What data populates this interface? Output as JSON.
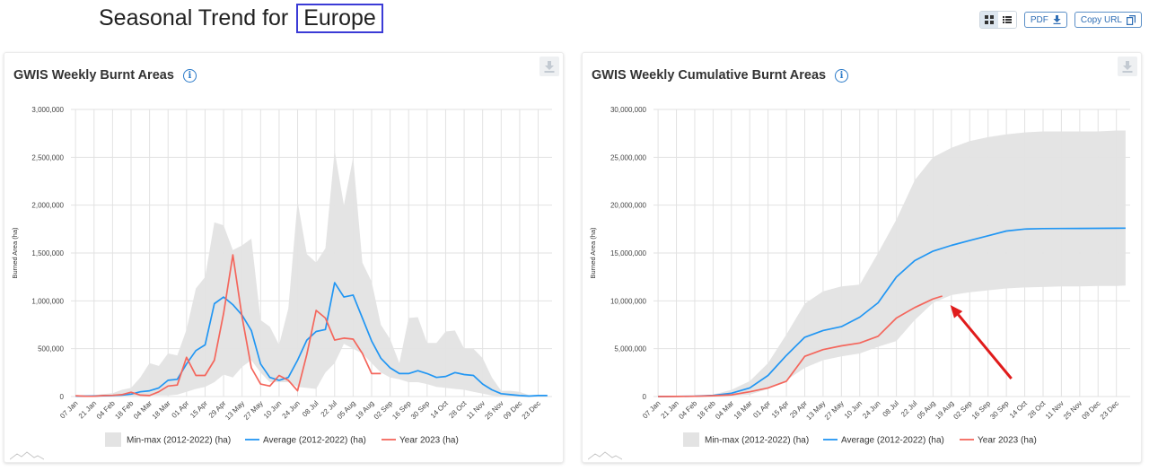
{
  "page": {
    "title_prefix": "Seasonal Trend for",
    "region": "Europe",
    "pdf_label": "PDF",
    "copy_url_label": "Copy URL",
    "icons": [
      "grid-view-icon",
      "list-view-icon",
      "download-icon",
      "copy-icon",
      "info-icon",
      "mountain-logo-icon"
    ]
  },
  "colors": {
    "minmax": "#e3e3e3",
    "average": "#2196f3",
    "year": "#f4665c",
    "grid": "#e2e2e2",
    "arrow": "#e01b1b"
  },
  "chart_data": [
    {
      "type": "area",
      "title": "GWIS Weekly Burnt Areas",
      "xlabel": "",
      "ylabel": "Burned Area (ha)",
      "ylim": [
        0,
        3000000
      ],
      "yticks": [
        0,
        500000,
        1000000,
        1500000,
        2000000,
        2500000,
        3000000
      ],
      "ytick_labels": [
        "0",
        "500,000",
        "1,000,000",
        "1,500,000",
        "2,000,000",
        "2,500,000",
        "3,000,000"
      ],
      "categories": [
        "07 Jan",
        "21 Jan",
        "04 Feb",
        "18 Feb",
        "04 Mar",
        "18 Mar",
        "01 Apr",
        "15 Apr",
        "29 Apr",
        "13 May",
        "27 May",
        "10 Jun",
        "24 Jun",
        "08 Jul",
        "22 Jul",
        "05 Aug",
        "19 Aug",
        "02 Sep",
        "16 Sep",
        "30 Sep",
        "14 Oct",
        "28 Oct",
        "11 Nov",
        "25 Nov",
        "09 Dec",
        "23 Dec"
      ],
      "legend": [
        "Min-max (2012-2022) (ha)",
        "Average (2012-2022) (ha)",
        "Year 2023 (ha)"
      ],
      "legend_placement": "bottom",
      "grid": true,
      "minmax_band": {
        "x": [
          0,
          1,
          2,
          3,
          4,
          5,
          6,
          7,
          8,
          9,
          10,
          11,
          12,
          13,
          14,
          15,
          16,
          17,
          18,
          19,
          20,
          21,
          22,
          23,
          24,
          25,
          26,
          27,
          28,
          29,
          30,
          31,
          32,
          33,
          34,
          35,
          36,
          37,
          38,
          39,
          40,
          41,
          42,
          43,
          44,
          45,
          46,
          47,
          48,
          49,
          50,
          51
        ],
        "max": [
          0,
          10000,
          15000,
          25000,
          35000,
          70000,
          90000,
          200000,
          350000,
          320000,
          450000,
          430000,
          700000,
          1130000,
          1250000,
          1820000,
          1790000,
          1530000,
          1580000,
          1650000,
          800000,
          730000,
          540000,
          920000,
          2040000,
          1490000,
          1400000,
          1550000,
          2570000,
          2000000,
          2500000,
          1400000,
          1200000,
          750000,
          600000,
          350000,
          820000,
          830000,
          560000,
          560000,
          680000,
          690000,
          500000,
          500000,
          400000,
          200000,
          60000,
          60000,
          50000,
          15000,
          10000,
          10000
        ],
        "min": [
          0,
          0,
          0,
          0,
          0,
          0,
          0,
          0,
          10000,
          10000,
          10000,
          20000,
          50000,
          80000,
          100000,
          150000,
          230000,
          200000,
          310000,
          380000,
          250000,
          150000,
          150000,
          150000,
          100000,
          90000,
          80000,
          250000,
          350000,
          550000,
          500000,
          450000,
          350000,
          250000,
          200000,
          180000,
          150000,
          150000,
          130000,
          100000,
          90000,
          80000,
          70000,
          50000,
          30000,
          10000,
          0,
          0,
          0,
          0,
          0,
          0
        ]
      },
      "series": [
        {
          "name": "Average (2012-2022) (ha)",
          "x": [
            0,
            1,
            2,
            3,
            4,
            5,
            6,
            7,
            8,
            9,
            10,
            11,
            12,
            13,
            14,
            15,
            16,
            17,
            18,
            19,
            20,
            21,
            22,
            23,
            24,
            25,
            26,
            27,
            28,
            29,
            30,
            31,
            32,
            33,
            34,
            35,
            36,
            37,
            38,
            39,
            40,
            41,
            42,
            43,
            44,
            45,
            46,
            47,
            48,
            49,
            50,
            51
          ],
          "values": [
            5000,
            5000,
            6000,
            8000,
            10000,
            15000,
            25000,
            50000,
            60000,
            90000,
            170000,
            180000,
            340000,
            480000,
            540000,
            970000,
            1040000,
            960000,
            850000,
            690000,
            340000,
            200000,
            170000,
            200000,
            380000,
            590000,
            680000,
            700000,
            1190000,
            1040000,
            1060000,
            820000,
            580000,
            400000,
            300000,
            240000,
            240000,
            270000,
            240000,
            200000,
            210000,
            250000,
            230000,
            220000,
            130000,
            70000,
            30000,
            20000,
            10000,
            5000,
            10000,
            10000
          ]
        },
        {
          "name": "Year 2023 (ha)",
          "x": [
            0,
            1,
            2,
            3,
            4,
            5,
            6,
            7,
            8,
            9,
            10,
            11,
            12,
            13,
            14,
            15,
            16,
            17,
            18,
            19,
            20,
            21,
            22,
            23,
            24,
            25,
            26,
            27,
            28,
            29,
            30,
            31,
            32,
            33
          ],
          "values": [
            8000,
            4000,
            3000,
            10000,
            12000,
            20000,
            45000,
            15000,
            10000,
            50000,
            110000,
            120000,
            410000,
            220000,
            220000,
            380000,
            870000,
            1480000,
            830000,
            300000,
            130000,
            110000,
            220000,
            170000,
            60000,
            440000,
            900000,
            820000,
            590000,
            610000,
            600000,
            450000,
            240000,
            240000
          ]
        }
      ]
    },
    {
      "type": "area",
      "title": "GWIS Weekly Cumulative Burnt Areas",
      "xlabel": "",
      "ylabel": "Burned Area (ha)",
      "ylim": [
        0,
        30000000
      ],
      "yticks": [
        0,
        5000000,
        10000000,
        15000000,
        20000000,
        25000000,
        30000000
      ],
      "ytick_labels": [
        "0",
        "5,000,000",
        "10,000,000",
        "15,000,000",
        "20,000,000",
        "25,000,000",
        "30,000,000"
      ],
      "categories": [
        "07 Jan",
        "21 Jan",
        "04 Feb",
        "18 Feb",
        "04 Mar",
        "18 Mar",
        "01 Apr",
        "15 Apr",
        "29 Apr",
        "13 May",
        "27 May",
        "10 Jun",
        "24 Jun",
        "08 Jul",
        "22 Jul",
        "05 Aug",
        "19 Aug",
        "02 Sep",
        "16 Sep",
        "30 Sep",
        "14 Oct",
        "28 Oct",
        "11 Nov",
        "25 Nov",
        "09 Dec",
        "23 Dec"
      ],
      "legend": [
        "Min-max (2012-2022) (ha)",
        "Average (2012-2022) (ha)",
        "Year 2023 (ha)"
      ],
      "legend_placement": "bottom",
      "grid": true,
      "annotation": "red arrow pointing to the end of the Year 2023 line (about 10,500,000 ha near 05 Aug)",
      "minmax_band": {
        "x": [
          0,
          2,
          4,
          6,
          8,
          10,
          12,
          14,
          16,
          18,
          20,
          22,
          24,
          26,
          28,
          30,
          32,
          34,
          36,
          38,
          40,
          42,
          44,
          46,
          48,
          50,
          51
        ],
        "max": [
          0,
          20000,
          60000,
          200000,
          700000,
          1600000,
          3500000,
          6500000,
          9700000,
          11000000,
          11500000,
          11700000,
          15000000,
          18500000,
          22600000,
          25000000,
          26000000,
          26700000,
          27100000,
          27400000,
          27600000,
          27700000,
          27700000,
          27700000,
          27700000,
          27800000,
          27800000
        ],
        "min": [
          0,
          0,
          0,
          20000,
          60000,
          200000,
          800000,
          1700000,
          3000000,
          3800000,
          4200000,
          4500000,
          5200000,
          5800000,
          8000000,
          9800000,
          10600000,
          10900000,
          11100000,
          11300000,
          11400000,
          11450000,
          11500000,
          11500000,
          11550000,
          11550000,
          11600000
        ]
      },
      "series": [
        {
          "name": "Average (2012-2022) (ha)",
          "x": [
            0,
            2,
            4,
            6,
            8,
            10,
            12,
            14,
            16,
            18,
            20,
            22,
            24,
            26,
            28,
            30,
            32,
            34,
            36,
            38,
            40,
            42,
            44,
            46,
            48,
            50,
            51
          ],
          "values": [
            0,
            15000,
            40000,
            120000,
            350000,
            900000,
            2200000,
            4300000,
            6200000,
            6900000,
            7300000,
            8300000,
            9800000,
            12500000,
            14200000,
            15200000,
            15800000,
            16300000,
            16800000,
            17300000,
            17500000,
            17550000,
            17560000,
            17570000,
            17580000,
            17590000,
            17600000
          ]
        },
        {
          "name": "Year 2023 (ha)",
          "x": [
            0,
            2,
            4,
            6,
            8,
            10,
            12,
            14,
            16,
            18,
            20,
            22,
            24,
            26,
            28,
            30,
            31
          ],
          "values": [
            0,
            10000,
            30000,
            80000,
            180000,
            500000,
            900000,
            1600000,
            4200000,
            4900000,
            5300000,
            5600000,
            6300000,
            8200000,
            9300000,
            10200000,
            10500000
          ]
        }
      ]
    }
  ]
}
